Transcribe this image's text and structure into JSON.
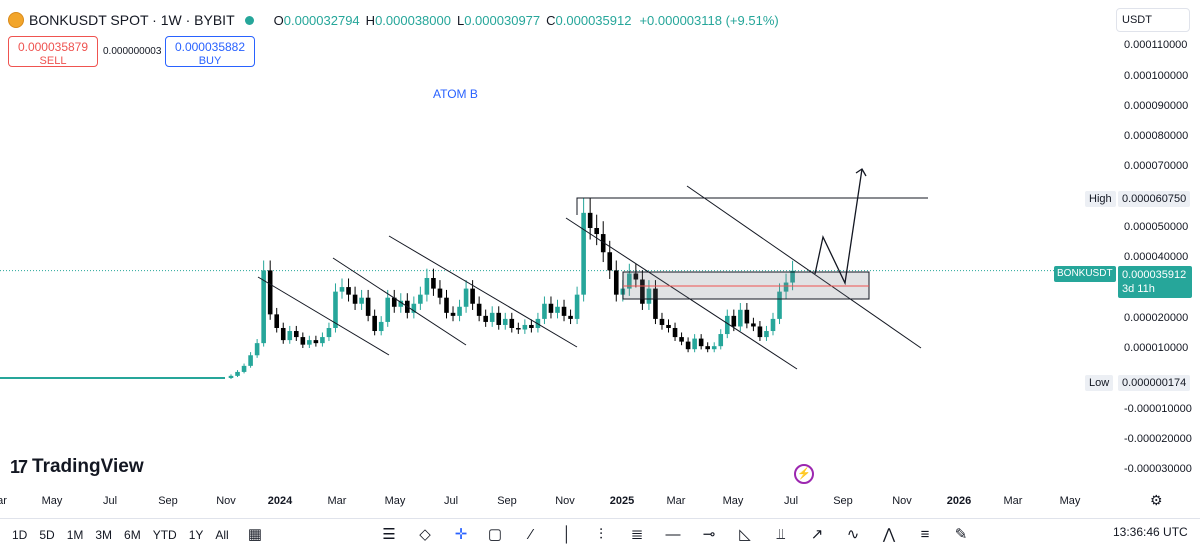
{
  "header": {
    "symbol": "BONKUSDT SPOT · 1W · BYBIT",
    "o_label": "O",
    "o_value": "0.000032794",
    "h_label": "H",
    "h_value": "0.000038000",
    "l_label": "L",
    "l_value": "0.000030977",
    "c_label": "C",
    "c_value": "0.000035912",
    "change": "+0.000003118 (+9.51%)"
  },
  "trade": {
    "sell_price": "0.000035879",
    "sell_label": "SELL",
    "spread": "0.000000003",
    "buy_price": "0.000035882",
    "buy_label": "BUY"
  },
  "currency": "USDT",
  "annotation_text": "ATOM B",
  "price_scale": {
    "ticks": [
      "0.000110000",
      "0.000100000",
      "0.000090000",
      "0.000080000",
      "0.000070000",
      "0.000050000",
      "0.000040000",
      "0.000020000",
      "0.000010000",
      "-0.000010000",
      "-0.000020000",
      "-0.000030000"
    ],
    "high_label": "High",
    "high_value": "0.000060750",
    "low_label": "Low",
    "low_value": "0.000000174",
    "last_name": "BONKUSDT",
    "last_value": "0.000035912",
    "countdown": "3d 11h"
  },
  "time_axis": [
    "ar",
    "May",
    "Jul",
    "Sep",
    "Nov",
    "2024",
    "Mar",
    "May",
    "Jul",
    "Sep",
    "Nov",
    "2025",
    "Mar",
    "May",
    "Jul",
    "Sep",
    "Nov",
    "2026",
    "Mar",
    "May"
  ],
  "timeframes": [
    "1D",
    "5D",
    "1M",
    "3M",
    "6M",
    "YTD",
    "1Y",
    "All"
  ],
  "clock": "13:36:46 UTC",
  "brand": "TradingView",
  "colors": {
    "up": "#26a69a",
    "down": "#000000",
    "accent": "#2962ff",
    "sell": "#ef5350"
  },
  "chart_data": {
    "type": "candlestick",
    "title": "BONKUSDT SPOT · 1W · BYBIT",
    "ylim": [
      -3.3e-05,
      0.000115
    ],
    "grid": false,
    "ohlc_weekly_approx": [
      [
        4e-07,
        6e-07,
        3e-07,
        5e-07
      ],
      [
        5e-07,
        6e-07,
        4e-07,
        5e-07
      ],
      [
        5e-07,
        7e-07,
        4e-07,
        6e-07
      ],
      [
        6e-07,
        8e-07,
        5e-07,
        7e-07
      ],
      [
        7e-07,
        9e-07,
        6e-07,
        8e-07
      ],
      [
        8e-07,
        1.2e-06,
        7e-07,
        1.1e-06
      ],
      [
        1.1e-06,
        1.6e-06,
        1e-06,
        1.5e-06
      ],
      [
        1.5e-06,
        2.2e-06,
        1.4e-06,
        2e-06
      ],
      [
        2e-06,
        2.8e-06,
        1.8e-06,
        2.6e-06
      ],
      [
        2.6e-06,
        4e-06,
        2.4e-06,
        3.7e-06
      ],
      [
        3.7e-06,
        6e-06,
        3.5e-06,
        5.5e-06
      ],
      [
        5.5e-06,
        7e-06,
        5e-06,
        6.5e-06
      ],
      [
        6.5e-06,
        8e-06,
        6e-06,
        7.5e-06
      ],
      [
        7.5e-06,
        9e-06,
        7e-06,
        8.5e-06
      ],
      [
        8.5e-06,
        1.1e-05,
        8e-06,
        1e-05
      ],
      [
        1e-05,
        1.3e-05,
        9.5e-06,
        1.2e-05
      ],
      [
        1.2e-05,
        1.6e-05,
        1.1e-05,
        1.5e-05
      ],
      [
        1.5e-05,
        1.8e-05,
        1.4e-05,
        1.7e-05
      ]
    ],
    "last": 3.5912e-05,
    "high": 6.075e-05,
    "low": 1.74e-07
  }
}
